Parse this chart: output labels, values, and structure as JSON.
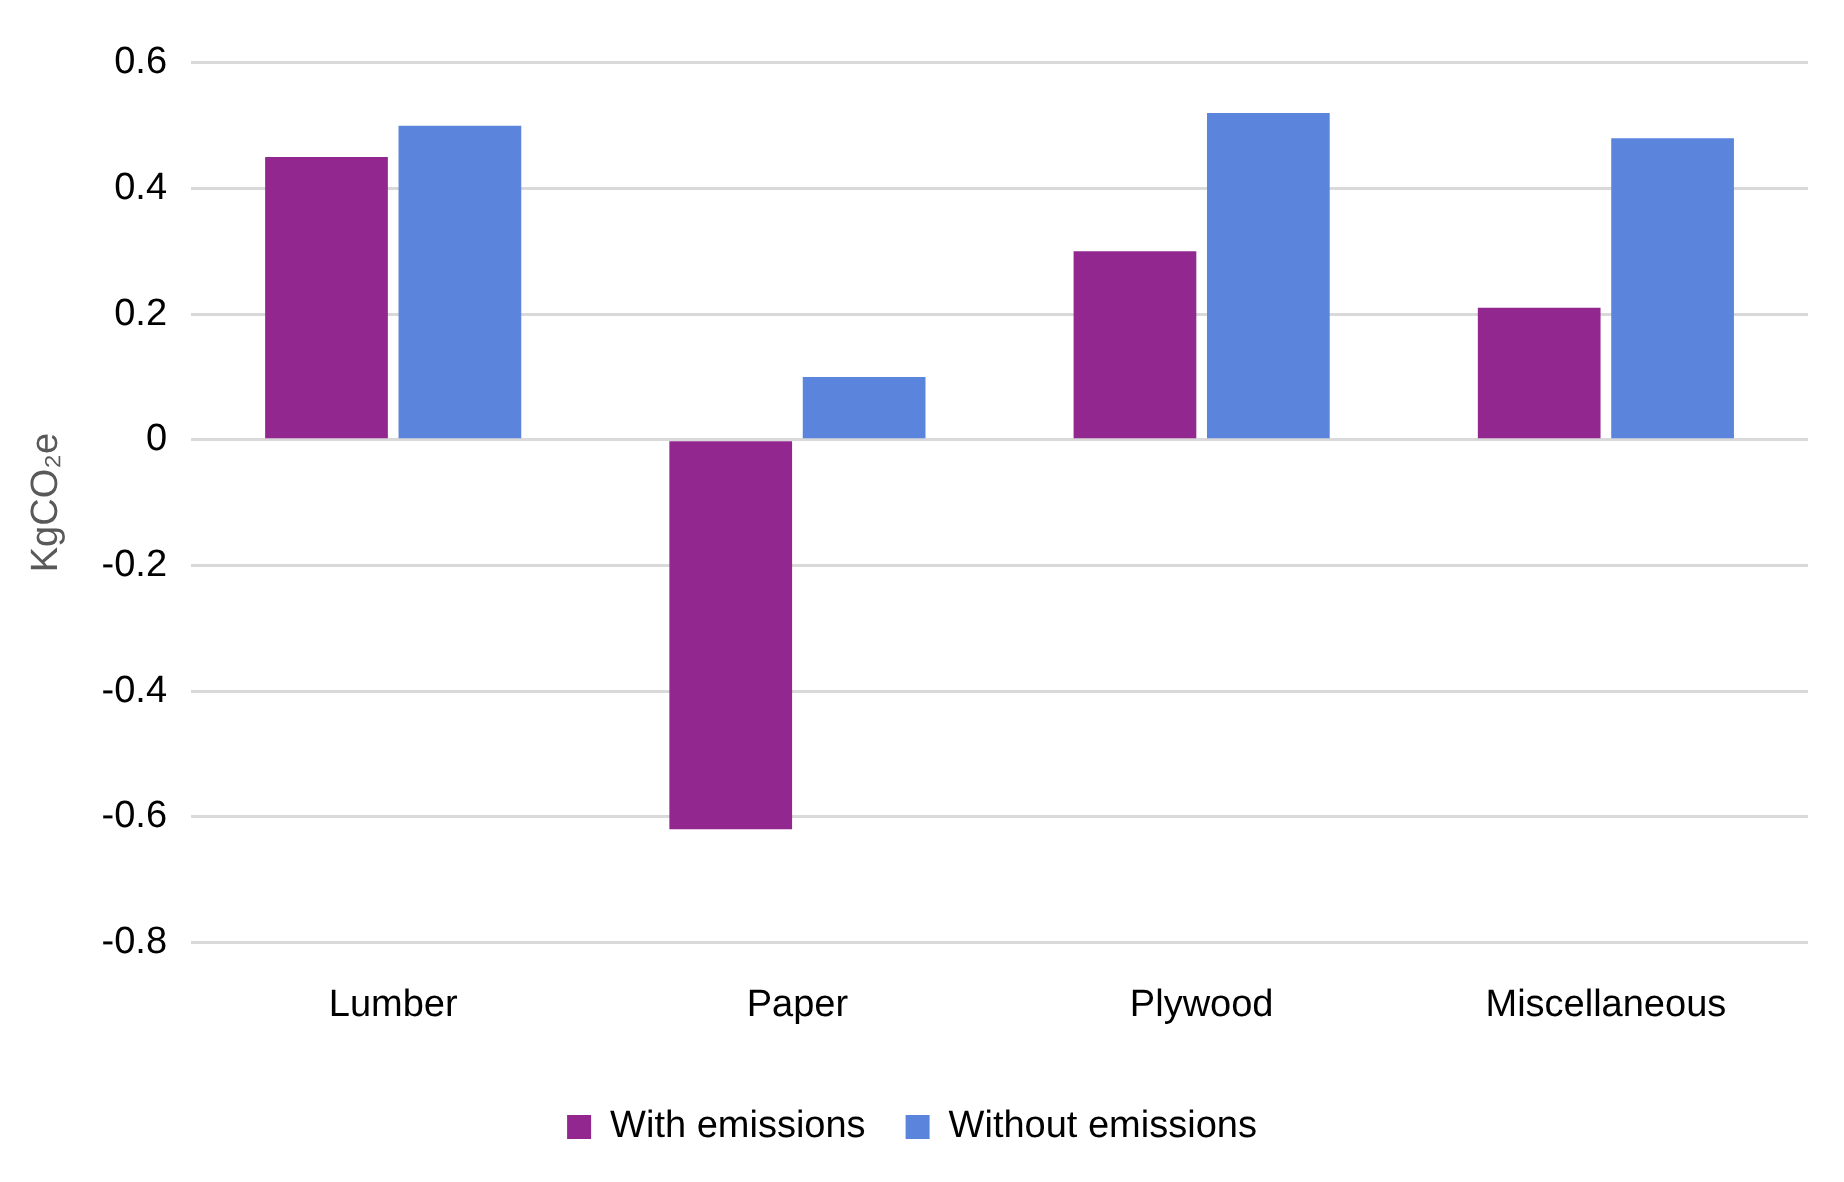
{
  "chart_data": {
    "type": "bar",
    "ylabel": "KgCO₂e",
    "categories": [
      "Lumber",
      "Paper",
      "Plywood",
      "Miscellaneous"
    ],
    "series": [
      {
        "name": "With emissions",
        "color": "#92278f",
        "values": [
          0.45,
          -0.62,
          0.3,
          0.21
        ]
      },
      {
        "name": "Without emissions",
        "color": "#5b85dc",
        "values": [
          0.5,
          0.1,
          0.52,
          0.48
        ]
      }
    ],
    "ylim": [
      -0.8,
      0.6
    ],
    "yticks": [
      {
        "value": -0.8,
        "label": "-0.8"
      },
      {
        "value": -0.6,
        "label": "-0.6"
      },
      {
        "value": -0.4,
        "label": "-0.4"
      },
      {
        "value": -0.2,
        "label": "-0.2"
      },
      0,
      {
        "value": 0.2,
        "label": "0.2"
      },
      {
        "value": 0.4,
        "label": "0.4"
      },
      {
        "value": 0.6,
        "label": "0.6"
      }
    ],
    "grid": "y",
    "legend": "bottom"
  }
}
